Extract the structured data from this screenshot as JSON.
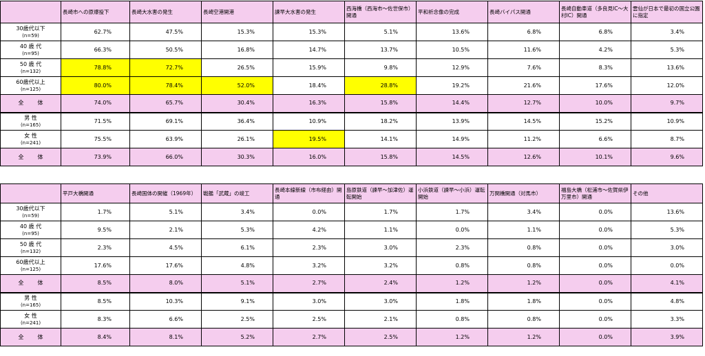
{
  "table1": {
    "headers": [
      "",
      "長崎市への原爆投下",
      "長崎大水害の発生",
      "長崎空港開港",
      "諫早大水害の発生",
      "西海橋（西海市～佐世保市）開通",
      "平和祈念像の完成",
      "長崎バイパス開通",
      "長崎自動車道（多良見IC～大村IC）開通",
      "雲仙が日本で最初の国立公園に指定"
    ],
    "rows": [
      {
        "label": "30歳代以下",
        "sub": "(n=59)",
        "values": [
          "62.7%",
          "47.5%",
          "15.3%",
          "15.3%",
          "5.1%",
          "13.6%",
          "6.8%",
          "6.8%",
          "3.4%"
        ],
        "highlight": []
      },
      {
        "label": "40 歳 代",
        "sub": "(n=95)",
        "values": [
          "66.3%",
          "50.5%",
          "16.8%",
          "14.7%",
          "13.7%",
          "10.5%",
          "11.6%",
          "4.2%",
          "5.3%"
        ],
        "highlight": []
      },
      {
        "label": "50 歳 代",
        "sub": "(n=132)",
        "values": [
          "78.8%",
          "72.7%",
          "26.5%",
          "15.9%",
          "9.8%",
          "12.9%",
          "7.6%",
          "8.3%",
          "13.6%"
        ],
        "highlight": [
          0,
          1
        ]
      },
      {
        "label": "60歳代以上",
        "sub": "(n=125)",
        "values": [
          "80.0%",
          "78.4%",
          "52.0%",
          "18.4%",
          "28.8%",
          "19.2%",
          "21.6%",
          "17.6%",
          "12.0%"
        ],
        "highlight": [
          0,
          1,
          2,
          4
        ]
      },
      {
        "label": "全　体",
        "sub": "",
        "values": [
          "74.0%",
          "65.7%",
          "30.4%",
          "16.3%",
          "15.8%",
          "14.4%",
          "12.7%",
          "10.0%",
          "9.7%"
        ],
        "highlight": [],
        "total": true
      },
      {
        "label": "男 性",
        "sub": "(n=165)",
        "values": [
          "71.5%",
          "69.1%",
          "36.4%",
          "10.9%",
          "18.2%",
          "13.9%",
          "14.5%",
          "15.2%",
          "10.9%"
        ],
        "highlight": [],
        "thick": true
      },
      {
        "label": "女 性",
        "sub": "(n=241)",
        "values": [
          "75.5%",
          "63.9%",
          "26.1%",
          "19.5%",
          "14.1%",
          "14.9%",
          "11.2%",
          "6.6%",
          "8.7%"
        ],
        "highlight": [
          3
        ]
      },
      {
        "label": "全　体",
        "sub": "",
        "values": [
          "73.9%",
          "66.0%",
          "30.3%",
          "16.0%",
          "15.8%",
          "14.5%",
          "12.6%",
          "10.1%",
          "9.6%"
        ],
        "highlight": [],
        "total": true
      }
    ]
  },
  "table2": {
    "headers": [
      "",
      "平戸大橋開通",
      "長崎国体の開催（1969年）",
      "戦艦「武蔵」の竣工",
      "長崎本線新線（市布経由）開通",
      "島原鉄道（諫早～加津佐）運転開始",
      "小浜鉄道（諫早～小浜）運転開始",
      "万関橋開通（対馬市）",
      "福島大橋（松浦市～佐賀県伊万里市）開通",
      "その他"
    ],
    "rows": [
      {
        "label": "30歳代以下",
        "sub": "(n=59)",
        "values": [
          "1.7%",
          "5.1%",
          "3.4%",
          "0.0%",
          "1.7%",
          "1.7%",
          "3.4%",
          "0.0%",
          "13.6%"
        ],
        "highlight": []
      },
      {
        "label": "40 歳 代",
        "sub": "(n=95)",
        "values": [
          "9.5%",
          "2.1%",
          "5.3%",
          "4.2%",
          "1.1%",
          "0.0%",
          "1.1%",
          "0.0%",
          "5.3%"
        ],
        "highlight": []
      },
      {
        "label": "50 歳 代",
        "sub": "(n=132)",
        "values": [
          "2.3%",
          "4.5%",
          "6.1%",
          "2.3%",
          "3.0%",
          "2.3%",
          "0.8%",
          "0.0%",
          "3.0%"
        ],
        "highlight": []
      },
      {
        "label": "60歳代以上",
        "sub": "(n=125)",
        "values": [
          "17.6%",
          "17.6%",
          "4.8%",
          "3.2%",
          "3.2%",
          "0.8%",
          "0.8%",
          "0.0%",
          "0.0%"
        ],
        "highlight": []
      },
      {
        "label": "全　体",
        "sub": "",
        "values": [
          "8.5%",
          "8.0%",
          "5.1%",
          "2.7%",
          "2.4%",
          "1.2%",
          "1.2%",
          "0.0%",
          "4.1%"
        ],
        "highlight": [],
        "total": true
      },
      {
        "label": "男 性",
        "sub": "(n=165)",
        "values": [
          "8.5%",
          "10.3%",
          "9.1%",
          "3.0%",
          "3.0%",
          "1.8%",
          "1.8%",
          "0.0%",
          "4.8%"
        ],
        "highlight": [],
        "thick": true
      },
      {
        "label": "女 性",
        "sub": "(n=241)",
        "values": [
          "8.3%",
          "6.6%",
          "2.5%",
          "2.5%",
          "2.1%",
          "0.8%",
          "0.8%",
          "0.0%",
          "3.3%"
        ],
        "highlight": []
      },
      {
        "label": "全　体",
        "sub": "",
        "values": [
          "8.4%",
          "8.1%",
          "5.2%",
          "2.7%",
          "2.5%",
          "1.2%",
          "1.2%",
          "0.0%",
          "3.9%"
        ],
        "highlight": [],
        "total": true
      }
    ]
  },
  "colors": {
    "header_bg": "#f5cdee",
    "highlight": "#ffff00",
    "border": "#000000"
  }
}
